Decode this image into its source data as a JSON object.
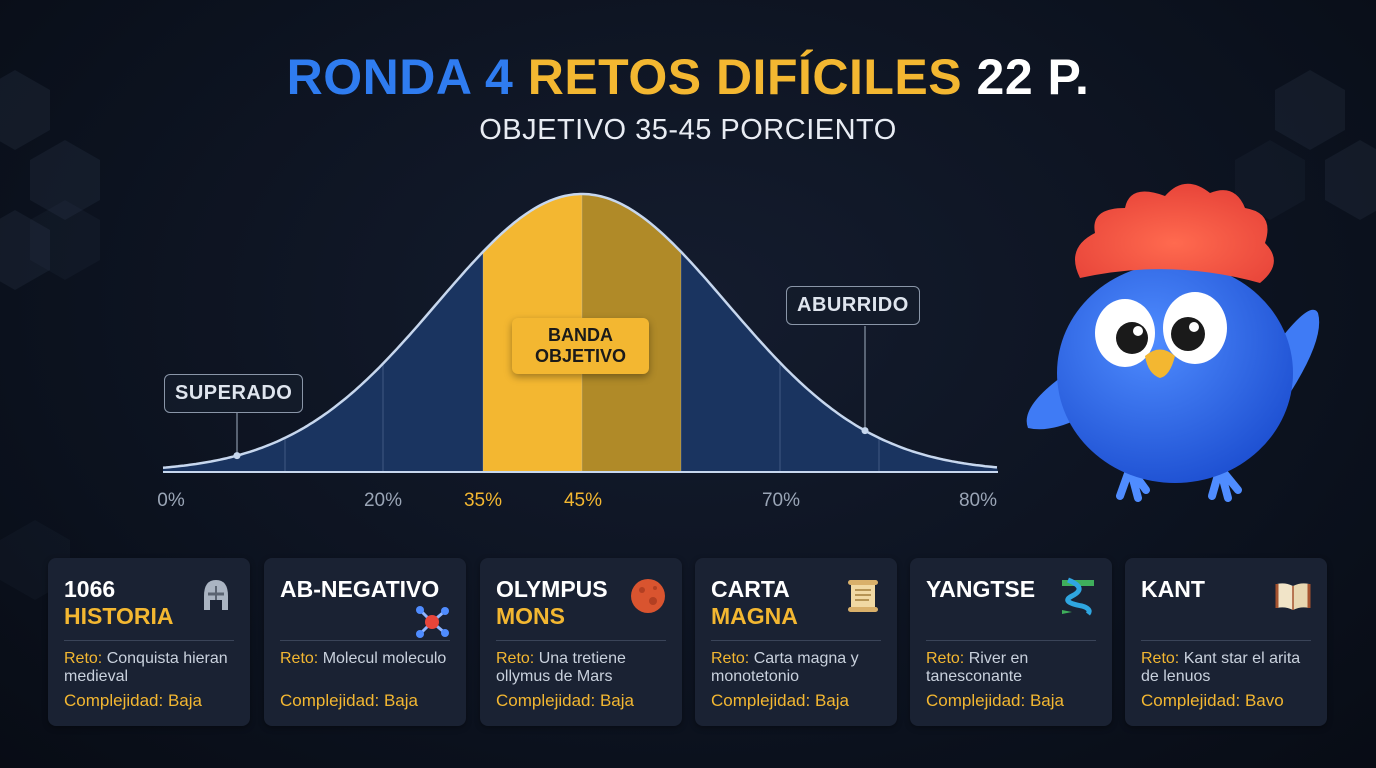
{
  "header": {
    "title_part1": "RONDA 4",
    "title_part2": "RETOS DIFÍCILES",
    "title_part3": "22 P.",
    "subtitle": "OBJETIVO 35-45 PORCIENTO"
  },
  "chart_data": {
    "type": "area",
    "x_ticks": [
      "0%",
      "20%",
      "35%",
      "45%",
      "70%",
      "80%"
    ],
    "target_band": {
      "from": "35%",
      "to": "45%",
      "label": "BANDA OBJETIVO"
    },
    "annotations": [
      "SUPERADO",
      "ABURRIDO"
    ],
    "colors": {
      "band": "#f3b731",
      "band_dark": "#b08a28",
      "area": "#1d3a66",
      "curve": "#c7d7ee"
    }
  },
  "cards": [
    {
      "title": "1066",
      "subtitle": "HISTORIA",
      "icon": "helmet-icon",
      "reto_key": "Reto:",
      "reto_text": "Conquista hieran medieval",
      "comp_key": "Complejidad:",
      "comp_value": "Baja"
    },
    {
      "title": "AB-NEGATIVO",
      "subtitle": "",
      "icon": "molecule-icon",
      "reto_key": "Reto:",
      "reto_text": "Molecul moleculo",
      "comp_key": "Complejidad:",
      "comp_value": "Baja"
    },
    {
      "title": "OLYMPUS",
      "subtitle": "MONS",
      "icon": "mars-planet-icon",
      "reto_key": "Reto:",
      "reto_text": "Una tretiene ollymus de Mars",
      "comp_key": "Complejidad:",
      "comp_value": "Baja"
    },
    {
      "title": "CARTA",
      "subtitle": "MAGNA",
      "icon": "scroll-icon",
      "reto_key": "Reto:",
      "reto_text": "Carta magna y monotetonio",
      "comp_key": "Complejidad:",
      "comp_value": "Baja"
    },
    {
      "title": "YANGTSE",
      "subtitle": "",
      "icon": "river-icon",
      "reto_key": "Reto:",
      "reto_text": "River en tanesconante",
      "comp_key": "Complejidad:",
      "comp_value": "Baja"
    },
    {
      "title": "KANT",
      "subtitle": "",
      "icon": "book-icon",
      "reto_key": "Reto:",
      "reto_text": "Kant star el arita de lenuos",
      "comp_key": "Complejidad:",
      "comp_value": "Bavo"
    }
  ],
  "mascot": {
    "icon": "blue-bird-mascot-icon"
  }
}
